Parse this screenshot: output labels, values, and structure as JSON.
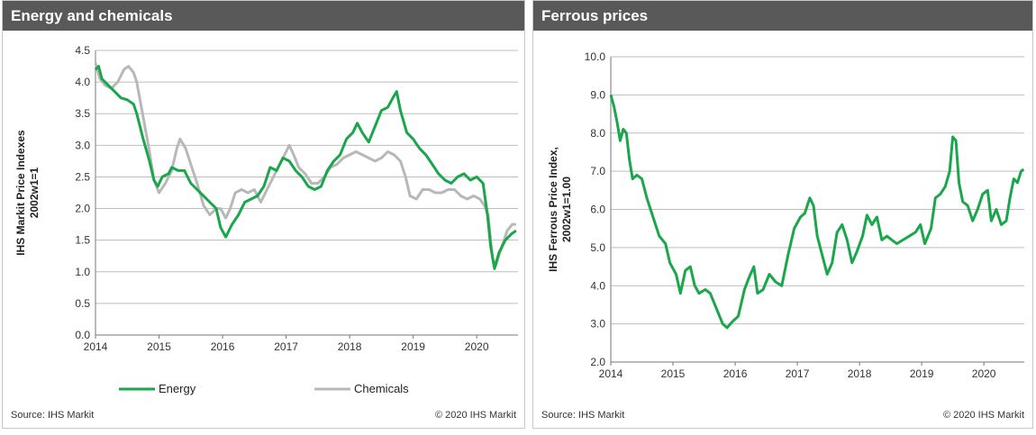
{
  "left_panel": {
    "title": "Energy and chemicals",
    "source": "Source: IHS Markit",
    "copyright": "© 2020 IHS Markit"
  },
  "right_panel": {
    "title": "Ferrous prices",
    "source": "Source: IHS Markit",
    "copyright": "© 2020 IHS Markit"
  },
  "colors": {
    "energy": "#1aa64a",
    "chemicals": "#b8b8b8",
    "ferrous": "#1aa64a",
    "grid": "#bdbdbd"
  },
  "chart_data": [
    {
      "type": "line",
      "title": "Energy and chemicals",
      "ylabel": [
        "IHS Markit Price Indexes",
        "2002w1=1"
      ],
      "xlabel": "",
      "xlim": [
        2014,
        2020.65
      ],
      "ylim": [
        0,
        4.5
      ],
      "x_ticks": [
        "2014",
        "2015",
        "2016",
        "2017",
        "2018",
        "2019",
        "2020"
      ],
      "y_ticks": [
        "0.0",
        "0.5",
        "1.0",
        "1.5",
        "2.0",
        "2.5",
        "3.0",
        "3.5",
        "4.0",
        "4.5"
      ],
      "grid": true,
      "legend": "bottom",
      "series": [
        {
          "name": "Energy",
          "points": [
            [
              2014.0,
              4.2
            ],
            [
              2014.05,
              4.25
            ],
            [
              2014.1,
              4.05
            ],
            [
              2014.2,
              3.95
            ],
            [
              2014.3,
              3.85
            ],
            [
              2014.4,
              3.75
            ],
            [
              2014.5,
              3.72
            ],
            [
              2014.6,
              3.65
            ],
            [
              2014.65,
              3.5
            ],
            [
              2014.75,
              3.1
            ],
            [
              2014.85,
              2.75
            ],
            [
              2014.92,
              2.45
            ],
            [
              2014.98,
              2.35
            ],
            [
              2015.05,
              2.5
            ],
            [
              2015.15,
              2.55
            ],
            [
              2015.2,
              2.65
            ],
            [
              2015.3,
              2.6
            ],
            [
              2015.4,
              2.6
            ],
            [
              2015.5,
              2.4
            ],
            [
              2015.6,
              2.3
            ],
            [
              2015.7,
              2.2
            ],
            [
              2015.8,
              2.1
            ],
            [
              2015.9,
              2.0
            ],
            [
              2015.97,
              1.7
            ],
            [
              2016.05,
              1.55
            ],
            [
              2016.15,
              1.75
            ],
            [
              2016.25,
              1.9
            ],
            [
              2016.35,
              2.1
            ],
            [
              2016.45,
              2.15
            ],
            [
              2016.55,
              2.2
            ],
            [
              2016.65,
              2.35
            ],
            [
              2016.75,
              2.65
            ],
            [
              2016.85,
              2.6
            ],
            [
              2016.95,
              2.8
            ],
            [
              2017.05,
              2.75
            ],
            [
              2017.15,
              2.6
            ],
            [
              2017.25,
              2.5
            ],
            [
              2017.35,
              2.35
            ],
            [
              2017.45,
              2.3
            ],
            [
              2017.55,
              2.35
            ],
            [
              2017.65,
              2.6
            ],
            [
              2017.75,
              2.75
            ],
            [
              2017.85,
              2.85
            ],
            [
              2017.95,
              3.1
            ],
            [
              2018.05,
              3.2
            ],
            [
              2018.12,
              3.35
            ],
            [
              2018.2,
              3.2
            ],
            [
              2018.3,
              3.05
            ],
            [
              2018.4,
              3.3
            ],
            [
              2018.5,
              3.55
            ],
            [
              2018.6,
              3.6
            ],
            [
              2018.68,
              3.75
            ],
            [
              2018.74,
              3.85
            ],
            [
              2018.8,
              3.55
            ],
            [
              2018.9,
              3.2
            ],
            [
              2019.0,
              3.1
            ],
            [
              2019.1,
              2.95
            ],
            [
              2019.2,
              2.85
            ],
            [
              2019.3,
              2.7
            ],
            [
              2019.4,
              2.55
            ],
            [
              2019.5,
              2.45
            ],
            [
              2019.6,
              2.4
            ],
            [
              2019.7,
              2.5
            ],
            [
              2019.8,
              2.55
            ],
            [
              2019.9,
              2.45
            ],
            [
              2020.0,
              2.5
            ],
            [
              2020.1,
              2.4
            ],
            [
              2020.17,
              1.9
            ],
            [
              2020.22,
              1.4
            ],
            [
              2020.28,
              1.05
            ],
            [
              2020.35,
              1.3
            ],
            [
              2020.45,
              1.5
            ],
            [
              2020.55,
              1.6
            ],
            [
              2020.62,
              1.65
            ]
          ]
        },
        {
          "name": "Chemicals",
          "points": [
            [
              2014.0,
              4.3
            ],
            [
              2014.07,
              4.05
            ],
            [
              2014.15,
              3.95
            ],
            [
              2014.25,
              3.9
            ],
            [
              2014.35,
              4.0
            ],
            [
              2014.45,
              4.2
            ],
            [
              2014.52,
              4.25
            ],
            [
              2014.6,
              4.15
            ],
            [
              2014.65,
              4.0
            ],
            [
              2014.75,
              3.45
            ],
            [
              2014.85,
              2.9
            ],
            [
              2014.92,
              2.45
            ],
            [
              2015.0,
              2.25
            ],
            [
              2015.1,
              2.4
            ],
            [
              2015.2,
              2.6
            ],
            [
              2015.28,
              2.95
            ],
            [
              2015.33,
              3.1
            ],
            [
              2015.42,
              2.95
            ],
            [
              2015.5,
              2.7
            ],
            [
              2015.6,
              2.4
            ],
            [
              2015.7,
              2.05
            ],
            [
              2015.8,
              1.9
            ],
            [
              2015.9,
              2.0
            ],
            [
              2015.97,
              2.0
            ],
            [
              2016.05,
              1.85
            ],
            [
              2016.12,
              2.0
            ],
            [
              2016.2,
              2.25
            ],
            [
              2016.3,
              2.3
            ],
            [
              2016.4,
              2.25
            ],
            [
              2016.5,
              2.3
            ],
            [
              2016.6,
              2.1
            ],
            [
              2016.7,
              2.3
            ],
            [
              2016.8,
              2.5
            ],
            [
              2016.9,
              2.7
            ],
            [
              2017.0,
              2.9
            ],
            [
              2017.05,
              3.0
            ],
            [
              2017.12,
              2.85
            ],
            [
              2017.2,
              2.65
            ],
            [
              2017.3,
              2.55
            ],
            [
              2017.4,
              2.4
            ],
            [
              2017.5,
              2.4
            ],
            [
              2017.6,
              2.5
            ],
            [
              2017.7,
              2.65
            ],
            [
              2017.8,
              2.7
            ],
            [
              2017.9,
              2.8
            ],
            [
              2018.0,
              2.85
            ],
            [
              2018.1,
              2.9
            ],
            [
              2018.2,
              2.85
            ],
            [
              2018.3,
              2.8
            ],
            [
              2018.4,
              2.75
            ],
            [
              2018.5,
              2.8
            ],
            [
              2018.6,
              2.9
            ],
            [
              2018.7,
              2.85
            ],
            [
              2018.8,
              2.75
            ],
            [
              2018.88,
              2.5
            ],
            [
              2018.95,
              2.2
            ],
            [
              2019.05,
              2.15
            ],
            [
              2019.15,
              2.3
            ],
            [
              2019.25,
              2.3
            ],
            [
              2019.35,
              2.25
            ],
            [
              2019.45,
              2.25
            ],
            [
              2019.55,
              2.3
            ],
            [
              2019.65,
              2.3
            ],
            [
              2019.75,
              2.2
            ],
            [
              2019.85,
              2.15
            ],
            [
              2019.95,
              2.2
            ],
            [
              2020.05,
              2.15
            ],
            [
              2020.12,
              2.05
            ],
            [
              2020.18,
              1.9
            ],
            [
              2020.25,
              1.2
            ],
            [
              2020.3,
              1.1
            ],
            [
              2020.38,
              1.35
            ],
            [
              2020.48,
              1.65
            ],
            [
              2020.56,
              1.75
            ],
            [
              2020.62,
              1.75
            ]
          ]
        }
      ]
    },
    {
      "type": "line",
      "title": "Ferrous prices",
      "ylabel": [
        "IHS Ferrous Price Index,",
        "2002w1=1.00"
      ],
      "xlabel": "",
      "xlim": [
        2014,
        2020.65
      ],
      "ylim": [
        2.0,
        10.0
      ],
      "x_ticks": [
        "2014",
        "2015",
        "2016",
        "2017",
        "2018",
        "2019",
        "2020"
      ],
      "y_ticks": [
        "2.0",
        "3.0",
        "4.0",
        "5.0",
        "6.0",
        "7.0",
        "8.0",
        "9.0",
        "10.0"
      ],
      "grid": true,
      "series": [
        {
          "name": "",
          "points": [
            [
              2014.0,
              9.0
            ],
            [
              2014.05,
              8.7
            ],
            [
              2014.1,
              8.3
            ],
            [
              2014.15,
              7.8
            ],
            [
              2014.2,
              8.1
            ],
            [
              2014.25,
              8.0
            ],
            [
              2014.3,
              7.3
            ],
            [
              2014.35,
              6.8
            ],
            [
              2014.42,
              6.9
            ],
            [
              2014.5,
              6.8
            ],
            [
              2014.58,
              6.3
            ],
            [
              2014.68,
              5.8
            ],
            [
              2014.78,
              5.3
            ],
            [
              2014.88,
              5.1
            ],
            [
              2014.95,
              4.6
            ],
            [
              2015.05,
              4.3
            ],
            [
              2015.12,
              3.8
            ],
            [
              2015.2,
              4.4
            ],
            [
              2015.28,
              4.5
            ],
            [
              2015.35,
              4.0
            ],
            [
              2015.42,
              3.8
            ],
            [
              2015.52,
              3.9
            ],
            [
              2015.6,
              3.8
            ],
            [
              2015.7,
              3.4
            ],
            [
              2015.8,
              3.0
            ],
            [
              2015.87,
              2.9
            ],
            [
              2015.95,
              3.05
            ],
            [
              2016.05,
              3.2
            ],
            [
              2016.15,
              3.9
            ],
            [
              2016.22,
              4.2
            ],
            [
              2016.3,
              4.5
            ],
            [
              2016.36,
              3.8
            ],
            [
              2016.45,
              3.9
            ],
            [
              2016.55,
              4.3
            ],
            [
              2016.65,
              4.1
            ],
            [
              2016.75,
              4.0
            ],
            [
              2016.85,
              4.8
            ],
            [
              2016.95,
              5.5
            ],
            [
              2017.05,
              5.8
            ],
            [
              2017.12,
              5.9
            ],
            [
              2017.2,
              6.3
            ],
            [
              2017.26,
              6.1
            ],
            [
              2017.32,
              5.3
            ],
            [
              2017.4,
              4.8
            ],
            [
              2017.48,
              4.3
            ],
            [
              2017.56,
              4.6
            ],
            [
              2017.64,
              5.4
            ],
            [
              2017.72,
              5.6
            ],
            [
              2017.8,
              5.2
            ],
            [
              2017.88,
              4.6
            ],
            [
              2017.96,
              4.9
            ],
            [
              2018.05,
              5.3
            ],
            [
              2018.12,
              5.85
            ],
            [
              2018.2,
              5.6
            ],
            [
              2018.28,
              5.8
            ],
            [
              2018.36,
              5.2
            ],
            [
              2018.44,
              5.3
            ],
            [
              2018.52,
              5.2
            ],
            [
              2018.6,
              5.1
            ],
            [
              2018.7,
              5.2
            ],
            [
              2018.8,
              5.3
            ],
            [
              2018.9,
              5.4
            ],
            [
              2018.98,
              5.6
            ],
            [
              2019.05,
              5.1
            ],
            [
              2019.15,
              5.5
            ],
            [
              2019.22,
              6.3
            ],
            [
              2019.3,
              6.4
            ],
            [
              2019.38,
              6.6
            ],
            [
              2019.45,
              7.0
            ],
            [
              2019.5,
              7.9
            ],
            [
              2019.55,
              7.8
            ],
            [
              2019.6,
              6.7
            ],
            [
              2019.66,
              6.2
            ],
            [
              2019.74,
              6.1
            ],
            [
              2019.82,
              5.7
            ],
            [
              2019.9,
              6.0
            ],
            [
              2019.98,
              6.4
            ],
            [
              2020.06,
              6.5
            ],
            [
              2020.12,
              5.7
            ],
            [
              2020.2,
              6.0
            ],
            [
              2020.28,
              5.6
            ],
            [
              2020.36,
              5.7
            ],
            [
              2020.42,
              6.3
            ],
            [
              2020.48,
              6.8
            ],
            [
              2020.54,
              6.7
            ],
            [
              2020.6,
              7.0
            ],
            [
              2020.64,
              7.05
            ]
          ]
        }
      ]
    }
  ]
}
